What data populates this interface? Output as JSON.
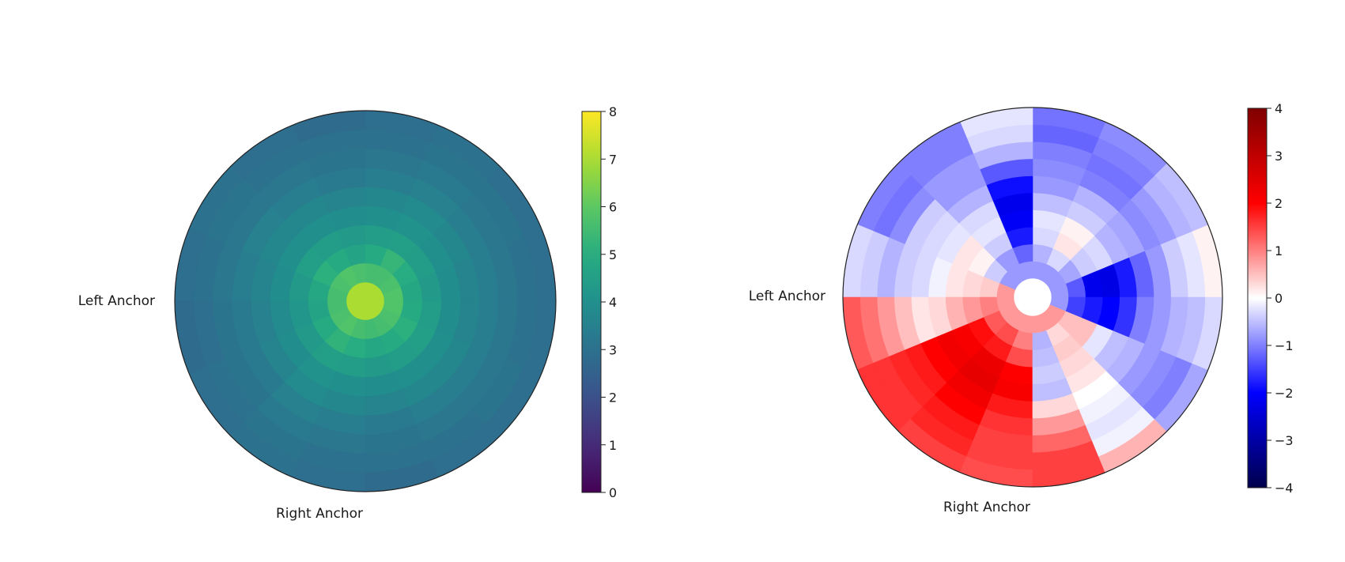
{
  "figure": {
    "background": "#ffffff"
  },
  "chart_data": [
    {
      "type": "heatmap",
      "projection": "polar",
      "title": "",
      "labels": {
        "left": "Left Anchor",
        "bottom": "Right Anchor"
      },
      "colormap": "viridis",
      "clim": [
        0,
        8
      ],
      "colorbar": {
        "ticks": [
          0,
          1,
          2,
          3,
          4,
          5,
          6,
          7,
          8
        ]
      },
      "n_rings": 10,
      "n_sectors": 16,
      "ring_edges": [
        0,
        0.1,
        0.2,
        0.3,
        0.4,
        0.5,
        0.6,
        0.7,
        0.8,
        0.9,
        1.0
      ],
      "sector_order": "counterclockwise from right (0°), 22.5° each",
      "values": [
        [
          7.0,
          7.0,
          7.0,
          7.0,
          7.0,
          7.0,
          7.0,
          7.0,
          7.0,
          7.0,
          7.0,
          7.0,
          7.0,
          7.0,
          7.0,
          7.0
        ],
        [
          5.8,
          5.7,
          5.6,
          5.6,
          5.7,
          5.8,
          5.7,
          5.6,
          5.6,
          5.7,
          5.8,
          5.6,
          5.5,
          5.6,
          5.7,
          5.8
        ],
        [
          4.8,
          5.0,
          5.3,
          4.9,
          4.7,
          4.9,
          5.1,
          4.8,
          4.7,
          4.9,
          5.2,
          5.0,
          4.8,
          4.9,
          5.1,
          4.9
        ],
        [
          4.3,
          4.4,
          4.5,
          4.4,
          4.3,
          4.4,
          4.5,
          4.3,
          4.2,
          4.3,
          4.5,
          4.4,
          4.3,
          4.4,
          4.5,
          4.4
        ],
        [
          3.9,
          4.0,
          4.1,
          4.0,
          3.9,
          4.0,
          4.0,
          3.9,
          3.8,
          3.9,
          4.1,
          4.0,
          3.9,
          4.0,
          4.0,
          3.9
        ],
        [
          3.6,
          3.7,
          3.8,
          3.7,
          3.6,
          3.7,
          3.7,
          3.6,
          3.5,
          3.6,
          3.8,
          3.7,
          3.6,
          3.7,
          3.7,
          3.6
        ],
        [
          3.4,
          3.4,
          3.5,
          3.4,
          3.3,
          3.4,
          3.5,
          3.4,
          3.3,
          3.3,
          3.5,
          3.4,
          3.3,
          3.4,
          3.4,
          3.4
        ],
        [
          3.2,
          3.2,
          3.3,
          3.2,
          3.1,
          3.2,
          3.2,
          3.2,
          3.1,
          3.1,
          3.3,
          3.2,
          3.1,
          3.2,
          3.2,
          3.2
        ],
        [
          3.0,
          3.1,
          3.1,
          3.0,
          3.0,
          3.0,
          3.1,
          3.0,
          2.9,
          3.0,
          3.1,
          3.0,
          3.0,
          3.0,
          3.1,
          3.0
        ],
        [
          2.9,
          2.9,
          3.0,
          2.9,
          2.8,
          2.9,
          3.0,
          2.9,
          2.8,
          2.9,
          3.0,
          2.9,
          2.8,
          2.9,
          2.9,
          2.9
        ]
      ]
    },
    {
      "type": "heatmap",
      "projection": "polar",
      "title": "",
      "labels": {
        "left": "Left Anchor",
        "bottom": "Right Anchor"
      },
      "colormap": "seismic",
      "clim": [
        -4,
        4
      ],
      "colorbar": {
        "ticks": [
          -4,
          -3,
          -2,
          -1,
          0,
          1,
          2,
          3,
          4
        ]
      },
      "n_rings": 10,
      "n_sectors": 16,
      "ring_edges": [
        0.1,
        0.19,
        0.28,
        0.37,
        0.46,
        0.55,
        0.64,
        0.73,
        0.82,
        0.91,
        1.0
      ],
      "sector_order": "counterclockwise from right (0°), 22.5° each",
      "values": [
        [
          -0.8,
          -0.8,
          -0.8,
          -0.8,
          -0.8,
          -0.8,
          -0.8,
          0.8,
          0.8,
          0.8,
          0.8,
          0.8,
          0.8,
          0.8,
          0.8,
          -0.8
        ],
        [
          -1.3,
          -0.7,
          -0.3,
          -0.6,
          -1.2,
          -0.8,
          -0.4,
          0.4,
          1.0,
          1.3,
          1.4,
          1.0,
          -0.6,
          0.3,
          0.5,
          -1.5
        ],
        [
          -2.2,
          -0.4,
          0.2,
          -0.3,
          -1.8,
          -0.4,
          0.1,
          0.3,
          0.8,
          1.9,
          1.8,
          1.4,
          -0.5,
          0.4,
          0.5,
          -1.8
        ],
        [
          -2.3,
          -0.3,
          0.1,
          -0.2,
          -2.1,
          -0.2,
          0.2,
          0.2,
          0.6,
          2.1,
          2.3,
          2.0,
          -0.4,
          0.3,
          -0.2,
          -2.0
        ],
        [
          -1.8,
          -0.6,
          -0.4,
          -0.5,
          -2.2,
          -0.3,
          -0.2,
          -0.1,
          0.3,
          2.2,
          2.4,
          2.1,
          -0.5,
          0.2,
          -0.5,
          -1.6
        ],
        [
          -1.2,
          -0.7,
          -0.6,
          -0.8,
          -1.9,
          -0.6,
          -0.3,
          -0.3,
          0.2,
          2.0,
          2.2,
          1.8,
          0.3,
          0.0,
          -0.6,
          -1.0
        ],
        [
          -0.8,
          -0.9,
          -1.0,
          -0.9,
          -1.3,
          -0.8,
          -0.4,
          -0.4,
          0.5,
          1.8,
          2.0,
          1.6,
          0.8,
          -0.1,
          -0.8,
          -0.8
        ],
        [
          -0.4,
          -0.8,
          -1.1,
          -1.0,
          -0.6,
          -0.8,
          -0.9,
          -0.6,
          0.8,
          1.7,
          1.8,
          1.5,
          1.2,
          -0.2,
          -0.9,
          -0.6
        ],
        [
          -0.2,
          -0.6,
          -1.0,
          -1.2,
          -0.3,
          -1.0,
          -1.1,
          -0.4,
          1.1,
          1.6,
          1.7,
          1.5,
          1.5,
          -0.1,
          -1.0,
          -0.5
        ],
        [
          0.1,
          -0.5,
          -0.9,
          -1.1,
          -0.2,
          -1.0,
          -1.0,
          -0.3,
          1.3,
          1.6,
          1.5,
          1.4,
          1.5,
          0.6,
          -0.7,
          -0.3
        ]
      ]
    }
  ]
}
